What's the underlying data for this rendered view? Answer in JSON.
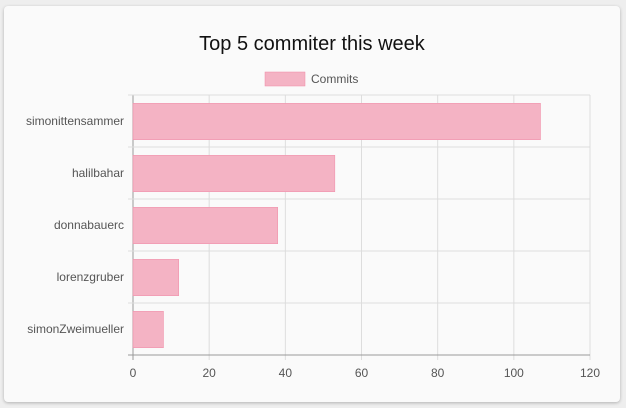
{
  "chart_data": {
    "type": "bar",
    "orientation": "horizontal",
    "title": "Top 5 commiter this week",
    "categories": [
      "simonittensammer",
      "halilbahar",
      "donnabauerc",
      "lorenzgruber",
      "simonZweimueller"
    ],
    "series": [
      {
        "name": "Commits",
        "values": [
          107,
          53,
          38,
          12,
          8
        ],
        "color": "#f4b3c4"
      }
    ],
    "xlim": [
      0,
      120
    ],
    "x_ticks": [
      "0",
      "20",
      "40",
      "60",
      "80",
      "100",
      "120"
    ],
    "grid": true,
    "legend_placement": "top-center"
  }
}
